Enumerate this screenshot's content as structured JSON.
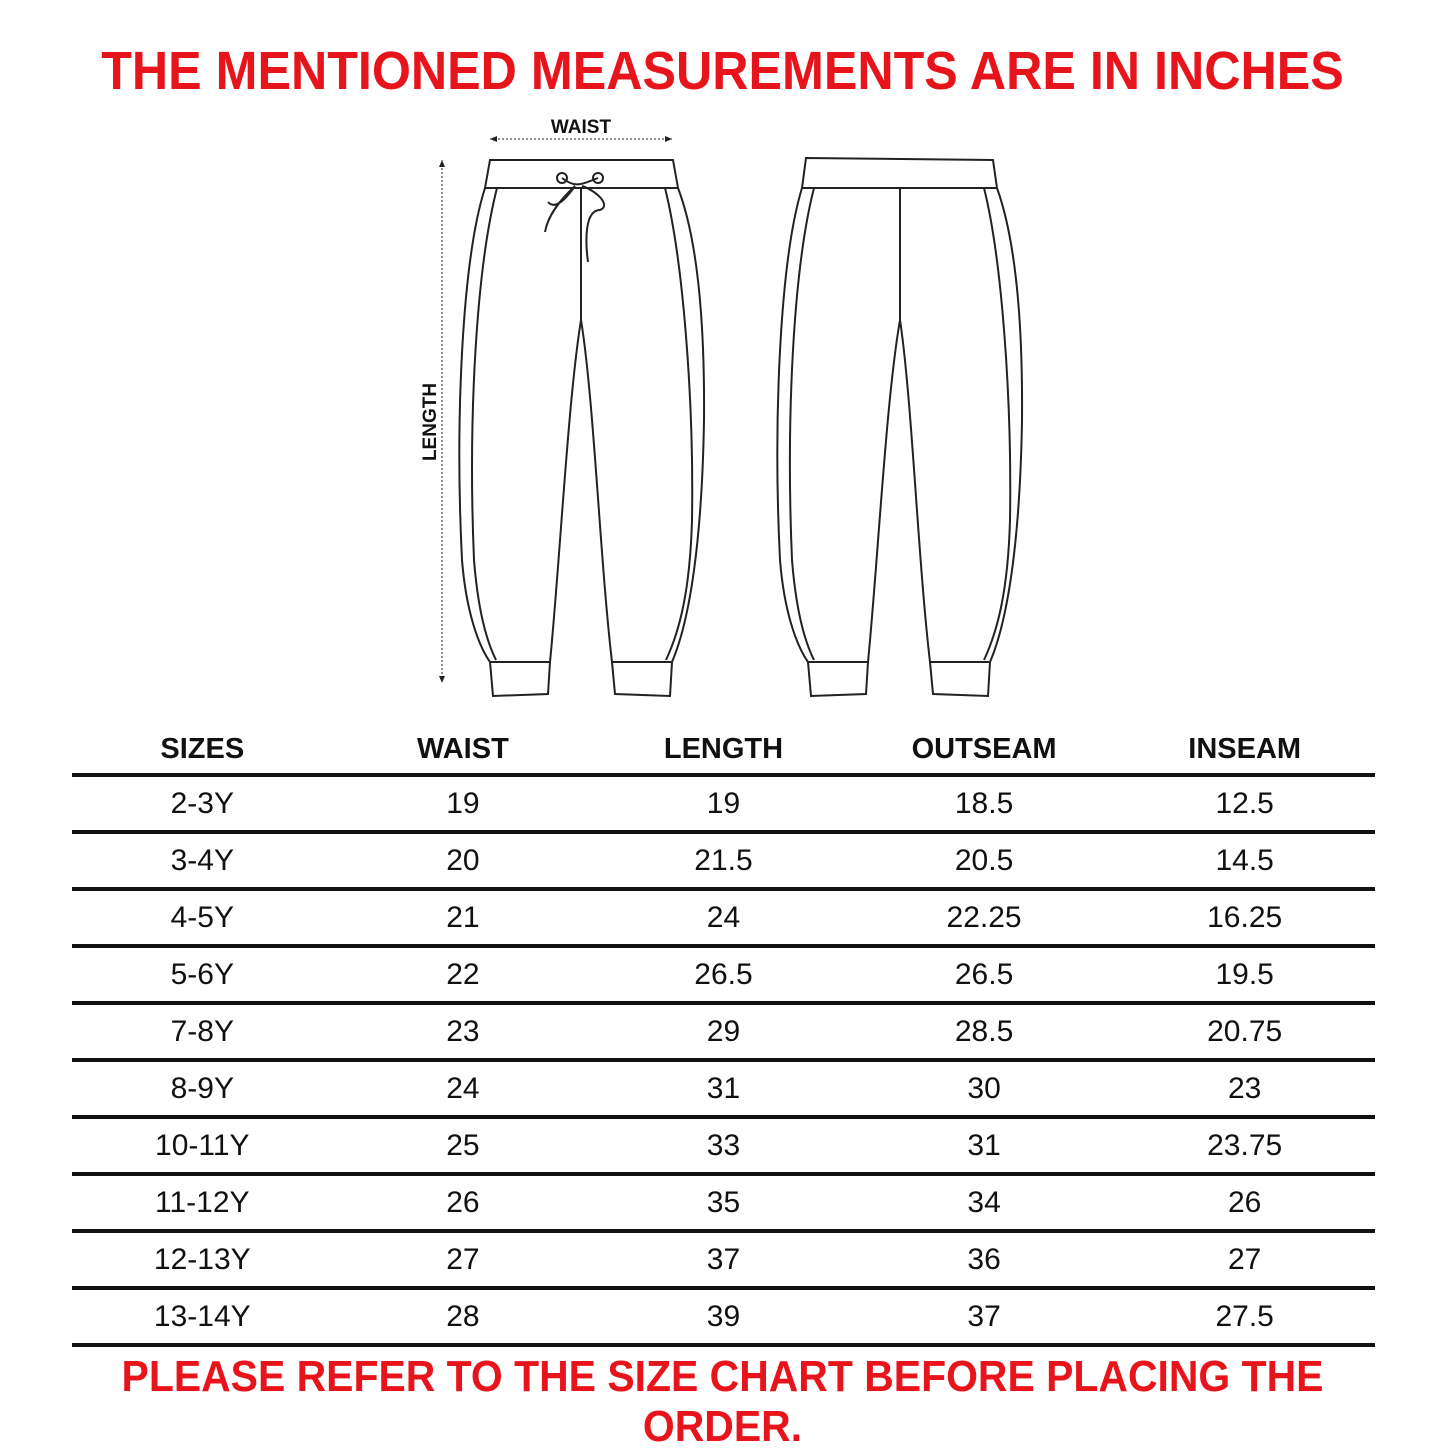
{
  "title": "THE MENTIONED MEASUREMENTS ARE IN INCHES",
  "diagram": {
    "waist_label": "WAIST",
    "length_label": "LENGTH"
  },
  "table": {
    "headers": [
      "SIZES",
      "WAIST",
      "LENGTH",
      "OUTSEAM",
      "INSEAM"
    ],
    "rows": [
      [
        "2-3Y",
        "19",
        "19",
        "18.5",
        "12.5"
      ],
      [
        "3-4Y",
        "20",
        "21.5",
        "20.5",
        "14.5"
      ],
      [
        "4-5Y",
        "21",
        "24",
        "22.25",
        "16.25"
      ],
      [
        "5-6Y",
        "22",
        "26.5",
        "26.5",
        "19.5"
      ],
      [
        "7-8Y",
        "23",
        "29",
        "28.5",
        "20.75"
      ],
      [
        "8-9Y",
        "24",
        "31",
        "30",
        "23"
      ],
      [
        "10-11Y",
        "25",
        "33",
        "31",
        "23.75"
      ],
      [
        "11-12Y",
        "26",
        "35",
        "34",
        "26"
      ],
      [
        "12-13Y",
        "27",
        "37",
        "36",
        "27"
      ],
      [
        "13-14Y",
        "28",
        "39",
        "37",
        "27.5"
      ]
    ]
  },
  "footer": "PLEASE REFER TO THE SIZE CHART BEFORE PLACING THE ORDER.",
  "colors": {
    "accent": "#e8141b",
    "text": "#111111"
  }
}
